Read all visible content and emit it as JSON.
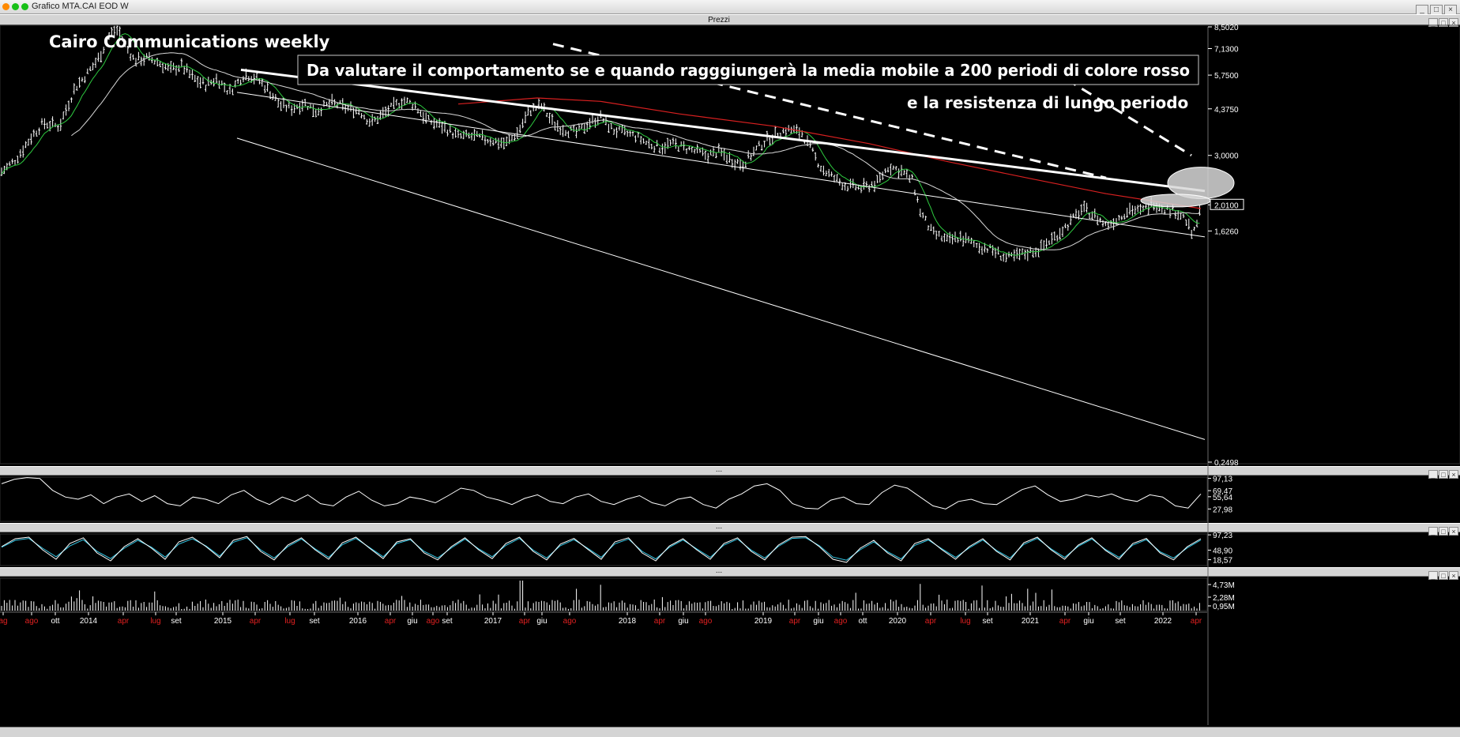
{
  "window": {
    "title": "Grafico MTA.CAI EOD W"
  },
  "panes": {
    "price_label": "Prezzi",
    "sep1_label": "...",
    "sep2_label": "...",
    "sep3_label": "...",
    "button_min": "_",
    "button_max": "□",
    "button_close": "×"
  },
  "annotations": {
    "title": "Cairo Communications weekly",
    "note_line1": "Da valutare il comportamento se e quando ragggiungerà la media mobile a 200 periodi di colore rosso",
    "note_line2": "e la resistenza di lungo periodo"
  },
  "colors": {
    "price_bars": "#ffffff",
    "ma_short": "#2ecc40",
    "ma_medium": "#d8d8d8",
    "ma_200": "#d92020",
    "stoch_k": "#ffffff",
    "stoch_d": "#33c7e6",
    "month_red": "#e02020",
    "axis_text": "#ffffff"
  },
  "chart_data": [
    {
      "type": "ohlc-weekly",
      "pane": "price",
      "y_scale": "log",
      "ylim": [
        0.2498,
        8.502
      ],
      "y_ticks": [
        "8,5020",
        "7,1300",
        "5,7500",
        "4,3750",
        "3,0000",
        "2,0100",
        "1,6260",
        "0,2498"
      ],
      "last_price": "2,0100",
      "x_tick_labels": [
        {
          "label": "ag",
          "red": true
        },
        {
          "label": "ago",
          "red": true
        },
        {
          "label": "ott",
          "red": false
        },
        {
          "label": "2014",
          "red": false
        },
        {
          "label": "apr",
          "red": true
        },
        {
          "label": "lug",
          "red": true
        },
        {
          "label": "set",
          "red": false
        },
        {
          "label": "2015",
          "red": false
        },
        {
          "label": "apr",
          "red": true
        },
        {
          "label": "lug",
          "red": true
        },
        {
          "label": "set",
          "red": false
        },
        {
          "label": "2016",
          "red": false
        },
        {
          "label": "apr",
          "red": true
        },
        {
          "label": "giu",
          "red": false
        },
        {
          "label": "ago",
          "red": true
        },
        {
          "label": "set",
          "red": false
        },
        {
          "label": "2017",
          "red": false
        },
        {
          "label": "apr",
          "red": true
        },
        {
          "label": "giu",
          "red": false
        },
        {
          "label": "ago",
          "red": true
        },
        {
          "label": "2018",
          "red": false
        },
        {
          "label": "apr",
          "red": true
        },
        {
          "label": "giu",
          "red": false
        },
        {
          "label": "ago",
          "red": true
        },
        {
          "label": "2019",
          "red": false
        },
        {
          "label": "apr",
          "red": true
        },
        {
          "label": "giu",
          "red": false
        },
        {
          "label": "ago",
          "red": true
        },
        {
          "label": "ott",
          "red": false
        },
        {
          "label": "2020",
          "red": false
        },
        {
          "label": "apr",
          "red": true
        },
        {
          "label": "lug",
          "red": true
        },
        {
          "label": "set",
          "red": false
        },
        {
          "label": "2021",
          "red": false
        },
        {
          "label": "apr",
          "red": true
        },
        {
          "label": "giu",
          "red": false
        },
        {
          "label": "set",
          "red": false
        },
        {
          "label": "2022",
          "red": false
        },
        {
          "label": "apr",
          "red": true
        }
      ],
      "price_path": [
        [
          0,
          2.6
        ],
        [
          20,
          2.9
        ],
        [
          40,
          3.5
        ],
        [
          55,
          3.9
        ],
        [
          75,
          3.8
        ],
        [
          95,
          5.2
        ],
        [
          110,
          5.8
        ],
        [
          125,
          6.6
        ],
        [
          140,
          8.1
        ],
        [
          150,
          8.3
        ],
        [
          160,
          7.2
        ],
        [
          170,
          6.5
        ],
        [
          185,
          6.6
        ],
        [
          200,
          6.4
        ],
        [
          215,
          6.0
        ],
        [
          230,
          6.2
        ],
        [
          245,
          5.6
        ],
        [
          260,
          5.3
        ],
        [
          275,
          5.6
        ],
        [
          290,
          5.0
        ],
        [
          300,
          5.4
        ],
        [
          310,
          5.8
        ],
        [
          325,
          5.6
        ],
        [
          340,
          5.1
        ],
        [
          355,
          4.5
        ],
        [
          370,
          4.4
        ],
        [
          385,
          4.6
        ],
        [
          400,
          4.3
        ],
        [
          420,
          4.6
        ],
        [
          440,
          4.4
        ],
        [
          455,
          4.3
        ],
        [
          470,
          3.9
        ],
        [
          480,
          4.1
        ],
        [
          495,
          4.4
        ],
        [
          510,
          4.7
        ],
        [
          525,
          4.5
        ],
        [
          540,
          4.0
        ],
        [
          560,
          3.8
        ],
        [
          580,
          3.5
        ],
        [
          600,
          3.5
        ],
        [
          620,
          3.4
        ],
        [
          640,
          3.3
        ],
        [
          655,
          3.6
        ],
        [
          670,
          4.3
        ],
        [
          685,
          4.5
        ],
        [
          700,
          3.9
        ],
        [
          715,
          3.7
        ],
        [
          730,
          3.6
        ],
        [
          745,
          3.9
        ],
        [
          760,
          4.1
        ],
        [
          775,
          3.7
        ],
        [
          790,
          3.6
        ],
        [
          805,
          3.5
        ],
        [
          820,
          3.3
        ],
        [
          835,
          3.2
        ],
        [
          850,
          3.3
        ],
        [
          865,
          3.2
        ],
        [
          880,
          3.1
        ],
        [
          895,
          3.0
        ],
        [
          910,
          3.1
        ],
        [
          925,
          2.9
        ],
        [
          940,
          2.8
        ],
        [
          955,
          3.1
        ],
        [
          970,
          3.4
        ],
        [
          985,
          3.6
        ],
        [
          1000,
          3.7
        ],
        [
          1015,
          3.6
        ],
        [
          1025,
          3.2
        ],
        [
          1040,
          2.7
        ],
        [
          1055,
          2.5
        ],
        [
          1070,
          2.35
        ],
        [
          1090,
          2.3
        ],
        [
          1110,
          2.4
        ],
        [
          1125,
          2.75
        ],
        [
          1140,
          2.65
        ],
        [
          1155,
          2.45
        ],
        [
          1165,
          1.9
        ],
        [
          1180,
          1.6
        ],
        [
          1200,
          1.5
        ],
        [
          1215,
          1.55
        ],
        [
          1235,
          1.45
        ],
        [
          1255,
          1.4
        ],
        [
          1275,
          1.3
        ],
        [
          1295,
          1.35
        ],
        [
          1315,
          1.4
        ],
        [
          1335,
          1.55
        ],
        [
          1355,
          1.75
        ],
        [
          1370,
          1.95
        ],
        [
          1385,
          1.85
        ],
        [
          1400,
          1.7
        ],
        [
          1415,
          1.8
        ],
        [
          1430,
          1.95
        ],
        [
          1445,
          1.9
        ],
        [
          1460,
          2.05
        ],
        [
          1475,
          1.95
        ],
        [
          1490,
          1.9
        ],
        [
          1500,
          1.8
        ],
        [
          1510,
          1.55
        ],
        [
          1520,
          1.95
        ]
      ],
      "overlays": [
        {
          "name": "ma_200",
          "points": [
            [
              580,
              4.55
            ],
            [
              680,
              4.78
            ],
            [
              760,
              4.65
            ],
            [
              860,
              4.2
            ],
            [
              980,
              3.8
            ],
            [
              1100,
              3.3
            ],
            [
              1200,
              2.85
            ],
            [
              1300,
              2.5
            ],
            [
              1400,
              2.2
            ],
            [
              1520,
              1.95
            ]
          ]
        },
        {
          "name": "resistance",
          "points": [
            [
              305,
              6.0
            ],
            [
              1525,
              2.25
            ]
          ]
        },
        {
          "name": "channel_upper",
          "points": [
            [
              300,
              5.0
            ],
            [
              1525,
              1.55
            ]
          ]
        },
        {
          "name": "channel_lower",
          "points": [
            [
              300,
              3.45
            ],
            [
              1525,
              0.3
            ]
          ]
        },
        {
          "name": "target_line_1",
          "points": [
            [
              700,
              7.4
            ],
            [
              1400,
              2.5
            ]
          ]
        },
        {
          "name": "target_line_2",
          "points": [
            [
              1330,
              6.0
            ],
            [
              1508,
              3.0
            ]
          ]
        }
      ]
    },
    {
      "type": "line",
      "pane": "rsi",
      "ylim": [
        0,
        100
      ],
      "y_ticks": [
        "97,13",
        "69,47",
        "55,64",
        "27,98"
      ],
      "series": [
        {
          "values": [
            85,
            95,
            99,
            97,
            70,
            55,
            50,
            60,
            40,
            55,
            62,
            45,
            58,
            40,
            35,
            55,
            50,
            40,
            60,
            70,
            50,
            38,
            55,
            45,
            60,
            40,
            35,
            55,
            68,
            48,
            35,
            40,
            55,
            50,
            42,
            58,
            75,
            70,
            55,
            48,
            38,
            52,
            60,
            45,
            40,
            55,
            62,
            45,
            38,
            50,
            58,
            42,
            35,
            50,
            55,
            38,
            30,
            50,
            62,
            80,
            85,
            70,
            40,
            30,
            28,
            48,
            55,
            40,
            38,
            65,
            82,
            75,
            55,
            35,
            28,
            45,
            50,
            40,
            38,
            55,
            72,
            80,
            60,
            45,
            50,
            60,
            55,
            62,
            50,
            45,
            60,
            55,
            35,
            30,
            62
          ]
        }
      ]
    },
    {
      "type": "line",
      "pane": "stochastic",
      "ylim": [
        0,
        100
      ],
      "y_ticks": [
        "97,23",
        "48,90",
        "18,57"
      ],
      "series": [
        {
          "values": [
            60,
            85,
            90,
            50,
            20,
            70,
            88,
            40,
            15,
            60,
            85,
            55,
            20,
            75,
            90,
            60,
            25,
            80,
            92,
            45,
            18,
            65,
            88,
            50,
            20,
            72,
            90,
            55,
            22,
            75,
            85,
            40,
            18,
            60,
            88,
            50,
            22,
            70,
            90,
            45,
            18,
            68,
            86,
            52,
            20,
            75,
            88,
            40,
            15,
            62,
            85,
            50,
            20,
            70,
            88,
            45,
            18,
            65,
            90,
            92,
            60,
            20,
            10,
            55,
            80,
            40,
            15,
            70,
            85,
            50,
            20,
            60,
            85,
            45,
            18,
            72,
            90,
            50,
            20,
            65,
            88,
            48,
            20,
            70,
            86,
            40,
            18,
            60,
            85
          ]
        },
        {
          "values": [
            58,
            80,
            86,
            55,
            28,
            62,
            82,
            45,
            22,
            55,
            80,
            58,
            27,
            68,
            85,
            62,
            30,
            74,
            88,
            50,
            24,
            60,
            84,
            53,
            26,
            66,
            86,
            57,
            28,
            70,
            82,
            45,
            24,
            56,
            84,
            53,
            28,
            64,
            86,
            49,
            24,
            63,
            82,
            55,
            26,
            69,
            84,
            45,
            21,
            58,
            81,
            53,
            26,
            65,
            84,
            49,
            24,
            61,
            86,
            88,
            63,
            27,
            17,
            50,
            75,
            44,
            21,
            64,
            81,
            53,
            26,
            56,
            81,
            48,
            24,
            67,
            86,
            53,
            26,
            61,
            84,
            51,
            26,
            65,
            82,
            44,
            24,
            56,
            81
          ]
        }
      ]
    },
    {
      "type": "bar",
      "pane": "volume",
      "y_ticks": [
        "4,73M",
        "2,28M",
        "0,95M"
      ]
    }
  ]
}
